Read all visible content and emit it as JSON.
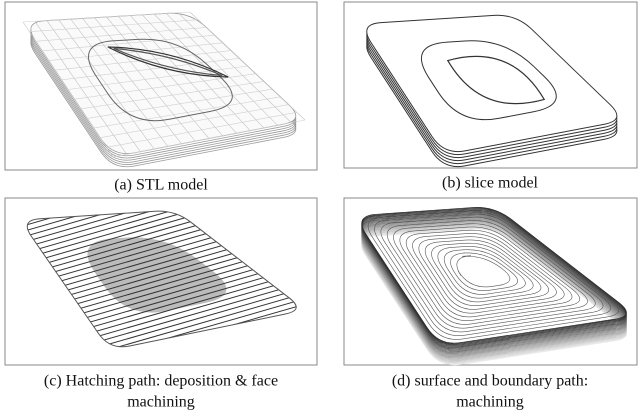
{
  "panels": [
    {
      "caption": [
        "(a) STL model"
      ]
    },
    {
      "caption": [
        "(b) slice model"
      ]
    },
    {
      "caption": [
        "(c) Hatching path: deposition & face",
        "machining"
      ]
    },
    {
      "caption": [
        "(d) surface and boundary path:",
        "machining"
      ]
    }
  ]
}
